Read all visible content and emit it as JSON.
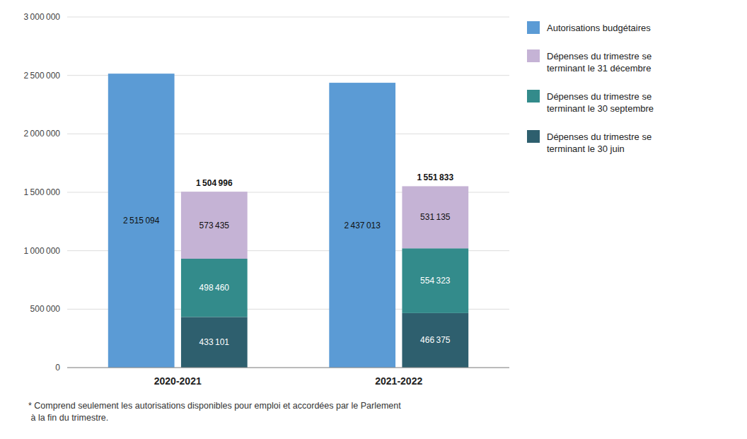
{
  "chart_data": {
    "type": "bar",
    "categories": [
      "2020-2021",
      "2021-2022"
    ],
    "series": [
      {
        "name": "Autorisations budgétaires",
        "color": "#5B9BD5",
        "stacked": false,
        "values": [
          2515094,
          2437013
        ],
        "value_labels": [
          "2 515 094",
          "2 437 013"
        ]
      },
      {
        "name": "Dépenses du trimestre se\nterminant le 30 juin",
        "color": "#2E5F6E",
        "stacked": true,
        "values": [
          433101,
          466375
        ],
        "value_labels": [
          "433 101",
          "466 375"
        ]
      },
      {
        "name": "Dépenses du trimestre se\nterminant le 30 septembre",
        "color": "#338B8B",
        "stacked": true,
        "values": [
          498460,
          554323
        ],
        "value_labels": [
          "498 460",
          "554 323"
        ]
      },
      {
        "name": "Dépenses du trimestre se\nterminant le 31 décembre",
        "color": "#C5B3D5",
        "stacked": true,
        "values": [
          573435,
          531135
        ],
        "value_labels": [
          "573 435",
          "531 135"
        ]
      }
    ],
    "totals": [
      1504996,
      1551833
    ],
    "total_labels": [
      "1 504 996",
      "1 551 833"
    ],
    "footnote": "* Comprend seulement les autorisations disponibles pour emploi et accordées par le Parlement\n à la fin du trimestre.",
    "ylim": [
      0,
      3000000
    ],
    "yticks": [
      0,
      {
        "value": 500000,
        "label": "500 000"
      },
      {
        "value": 1000000,
        "label": "1 000 000"
      },
      {
        "value": 1500000,
        "label": "1 500 000"
      },
      {
        "value": 2000000,
        "label": "2 000 000"
      },
      {
        "value": 2500000,
        "label": "2 500 000"
      },
      {
        "value": 3000000,
        "label": "3 000 000"
      }
    ],
    "grid": true,
    "legend": "right",
    "data_labels": true
  }
}
